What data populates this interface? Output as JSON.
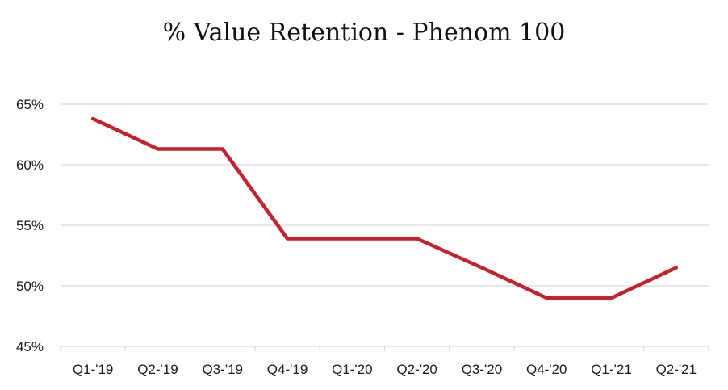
{
  "chart_data": {
    "type": "line",
    "title": "% Value Retention - Phenom 100",
    "xlabel": "",
    "ylabel": "",
    "categories": [
      "Q1-'19",
      "Q2-'19",
      "Q3-'19",
      "Q4-'19",
      "Q1-'20",
      "Q2-'20",
      "Q3-'20",
      "Q4-'20",
      "Q1-'21",
      "Q2-'21"
    ],
    "y_ticks": [
      "45%",
      "50%",
      "55%",
      "60%",
      "65%"
    ],
    "y_tick_values": [
      45,
      50,
      55,
      60,
      65
    ],
    "ylim": [
      45,
      65
    ],
    "grid": true,
    "legend": "none",
    "series": [
      {
        "values": [
          63.8,
          61.3,
          61.3,
          53.9,
          53.9,
          53.9,
          51.5,
          49.0,
          49.0,
          51.5
        ],
        "color": "#c8202f"
      }
    ]
  }
}
